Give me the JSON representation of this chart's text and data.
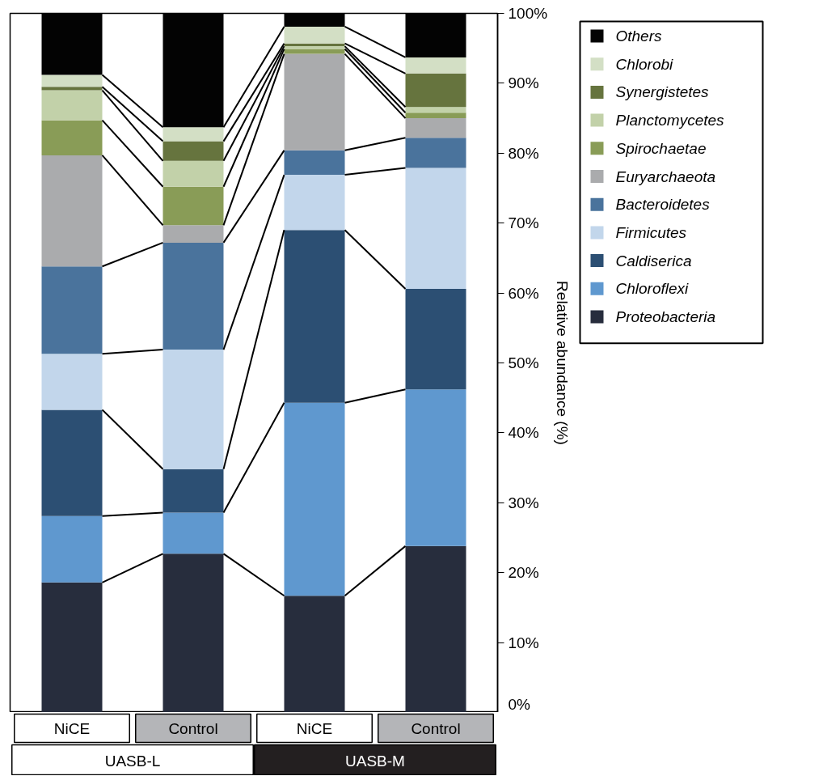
{
  "chart_data": {
    "type": "bar",
    "stacked": true,
    "ylabel": "Relative abundance (%)",
    "categories": [
      "NiCE",
      "Control",
      "NiCE",
      "Control"
    ],
    "annotations": [
      "UASB-L",
      "UASB-M"
    ],
    "series": [
      {
        "name": "Proteobacteria",
        "color": "#272d3d",
        "values": [
          18.6,
          22.7,
          16.7,
          23.8
        ]
      },
      {
        "name": "Chloroflexi",
        "color": "#5f98cf",
        "values": [
          9.5,
          5.9,
          27.6,
          22.4
        ]
      },
      {
        "name": "Caldiserica",
        "color": "#2c4f73",
        "values": [
          15.2,
          6.2,
          24.7,
          14.4
        ]
      },
      {
        "name": "Firmicutes",
        "color": "#c2d6eb",
        "values": [
          8.0,
          17.1,
          7.9,
          17.3
        ]
      },
      {
        "name": "Bacteroidetes",
        "color": "#4a739c",
        "values": [
          12.5,
          15.3,
          3.5,
          4.3
        ]
      },
      {
        "name": "Euryarchaeota",
        "color": "#aaabad",
        "values": [
          15.9,
          2.5,
          13.8,
          2.8
        ]
      },
      {
        "name": "Spirochaetae",
        "color": "#899c57",
        "values": [
          5.0,
          5.5,
          0.7,
          0.8
        ]
      },
      {
        "name": "Planctomycetes",
        "color": "#c2d1a9",
        "values": [
          4.3,
          3.7,
          0.4,
          0.8
        ]
      },
      {
        "name": "Synergistetes",
        "color": "#66743e",
        "values": [
          0.5,
          2.8,
          0.4,
          4.8
        ]
      },
      {
        "name": "Chlorobi",
        "color": "#d3dfc5",
        "values": [
          1.7,
          2.0,
          2.4,
          2.3
        ]
      },
      {
        "name": "Others",
        "color": "#030303",
        "values": [
          8.8,
          16.3,
          1.9,
          6.3
        ]
      }
    ],
    "ylim": [
      0,
      100
    ],
    "yticks": [
      {
        "value": 0,
        "label": "0%"
      },
      {
        "value": 10,
        "label": "10%"
      },
      {
        "value": 20,
        "label": "20%"
      },
      {
        "value": 30,
        "label": "30%"
      },
      {
        "value": 40,
        "label": "40%"
      },
      {
        "value": 50,
        "label": "50%"
      },
      {
        "value": 60,
        "label": "60%"
      },
      {
        "value": 70,
        "label": "70%"
      },
      {
        "value": 80,
        "label": "80%"
      },
      {
        "value": 90,
        "label": "90%"
      },
      {
        "value": 100,
        "label": "100%"
      }
    ],
    "grid": false,
    "legend": "right"
  }
}
